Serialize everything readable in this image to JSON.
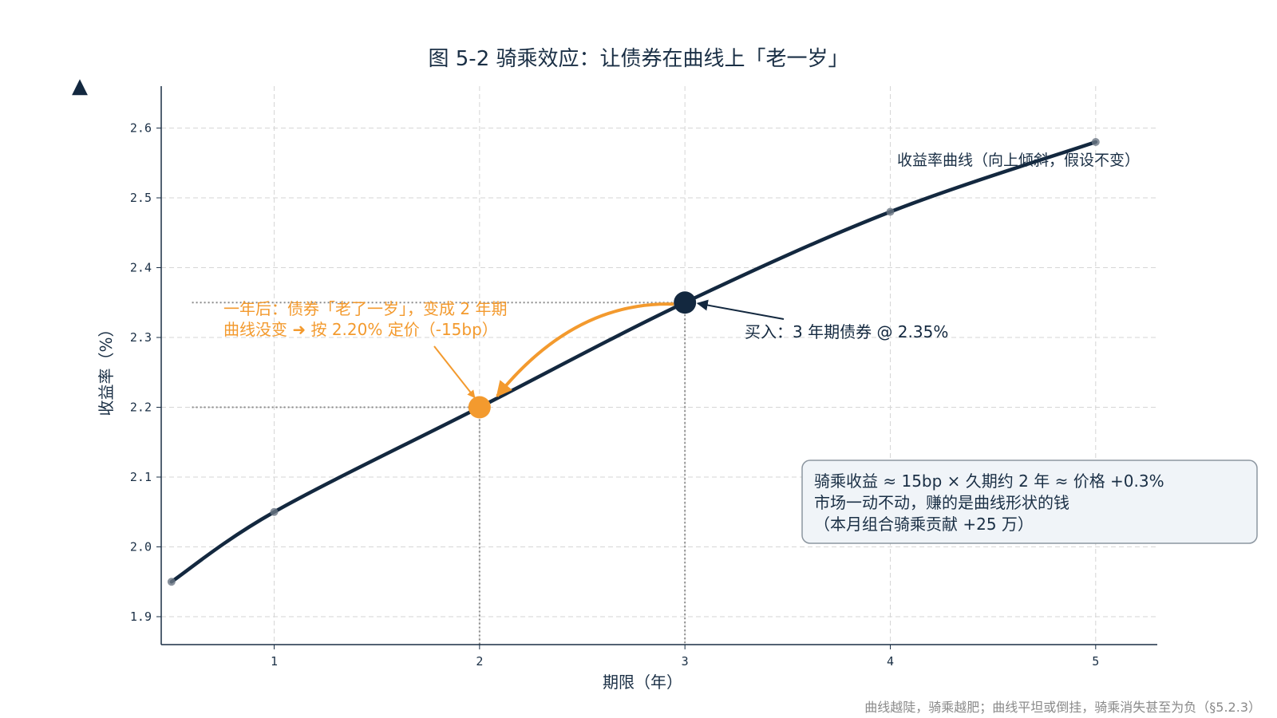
{
  "chart_data": {
    "type": "line",
    "title": "图 5-2 骑乘效应：让债券在曲线上「老一岁」",
    "xlabel": "期限（年）",
    "ylabel": "收益率（%）",
    "xlim": [
      0.45,
      5.3
    ],
    "ylim": [
      1.86,
      2.66
    ],
    "xticks": [
      1,
      2,
      3,
      4,
      5
    ],
    "yticks": [
      1.9,
      2.0,
      2.1,
      2.2,
      2.3,
      2.4,
      2.5,
      2.6
    ],
    "xtick_labels": [
      "1",
      "2",
      "3",
      "4",
      "5"
    ],
    "ytick_labels": [
      "1.9",
      "2.0",
      "2.1",
      "2.2",
      "2.3",
      "2.4",
      "2.5",
      "2.6"
    ],
    "grid": true,
    "series": [
      {
        "name": "收益率曲线（向上倾斜，假设不变）",
        "x": [
          0.5,
          1,
          2,
          3,
          4,
          5
        ],
        "y": [
          1.95,
          2.05,
          2.2,
          2.35,
          2.48,
          2.58
        ]
      }
    ],
    "markers": [
      {
        "x": 3,
        "y": 2.35,
        "color": "#13283f",
        "label": "买入：3 年期债券 @ 2.35%"
      },
      {
        "x": 2,
        "y": 2.2,
        "color": "#f39a2e",
        "label_line1": "一年后：债券「老了一岁」，变成 2 年期",
        "label_line2": "曲线没变 ➜ 按 2.20% 定价（-15bp）"
      }
    ],
    "info_box": [
      "骑乘收益 ≈ 15bp × 久期约 2 年 ≈ 价格 +0.3%",
      "市场一动不动，赚的是曲线形状的钱",
      "（本月组合骑乘贡献 +25 万）"
    ],
    "footnote": "曲线越陡，骑乘越肥；曲线平坦或倒挂，骑乘消失甚至为负（§5.2.3）",
    "colors": {
      "curve": "#13283f",
      "buy": "#13283f",
      "after": "#f39a2e",
      "grid": "#d6d6d6",
      "box_fill": "#f0f4f8",
      "box_stroke": "#8c96a0"
    }
  },
  "decor": {
    "corner_icon": "triangle-icon",
    "corner_glyph": "▲"
  }
}
